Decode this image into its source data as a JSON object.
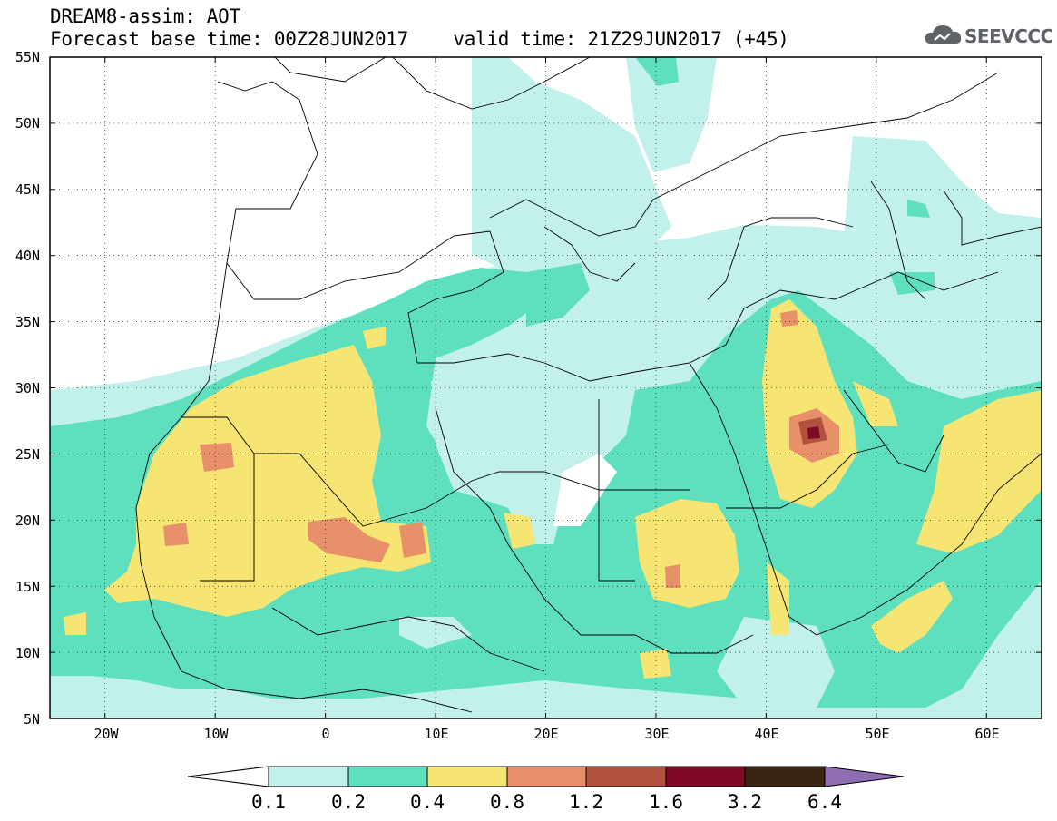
{
  "header": {
    "line1": "DREAM8-assim: AOT",
    "line2": "Forecast base time: 00Z28JUN2017    valid time: 21Z29JUN2017 (+45)"
  },
  "logo": {
    "text": "SEEVCCC",
    "icon": "cloud-icon"
  },
  "map": {
    "lon_range": [
      -25,
      65
    ],
    "lat_range": [
      5,
      55
    ],
    "y_ticks": [
      "5N",
      "10N",
      "15N",
      "20N",
      "25N",
      "30N",
      "35N",
      "40N",
      "45N",
      "50N",
      "55N"
    ],
    "x_ticks": [
      "20W",
      "10W",
      "0",
      "10E",
      "20E",
      "30E",
      "40E",
      "50E",
      "60E"
    ]
  },
  "legend": {
    "labels": [
      "0.1",
      "0.2",
      "0.4",
      "0.8",
      "1.2",
      "1.6",
      "3.2",
      "6.4"
    ],
    "colors": [
      "#ffffff",
      "#c2f0ea",
      "#5ee0be",
      "#f6e572",
      "#e8906a",
      "#b0523e",
      "#7e0a28",
      "#3a2412",
      "#8e6db0"
    ]
  }
}
